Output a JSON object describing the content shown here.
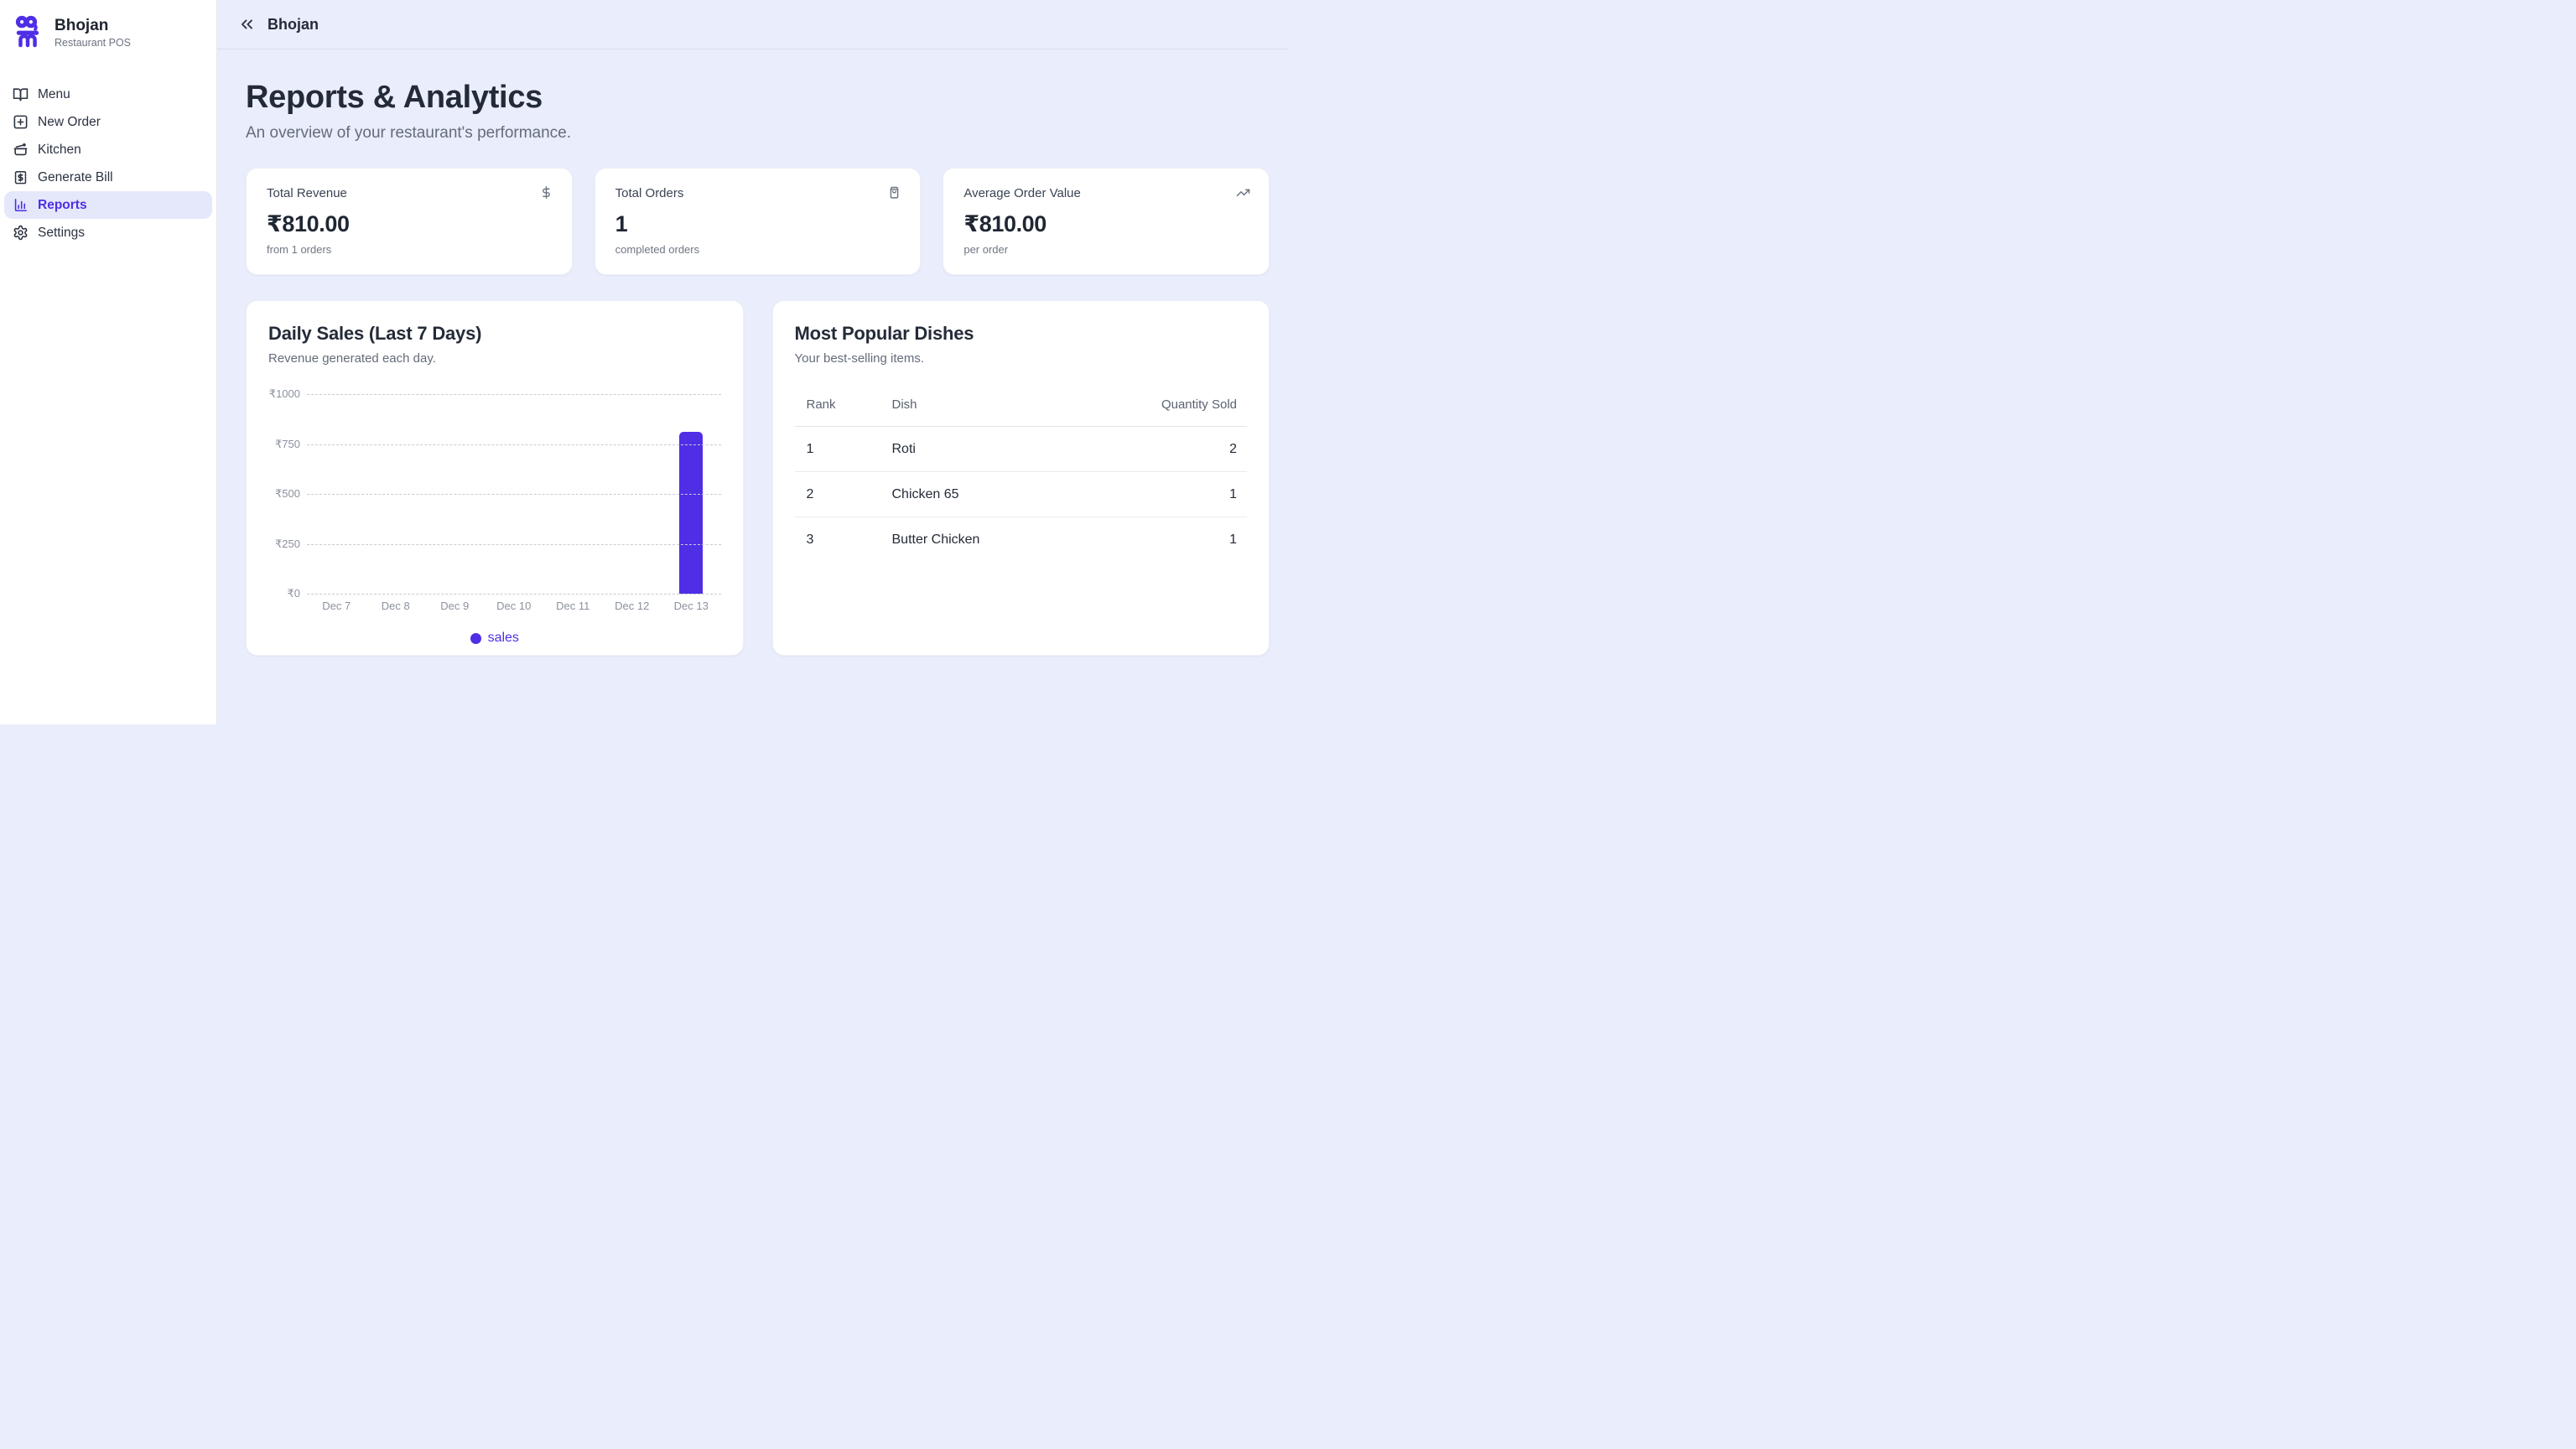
{
  "colors": {
    "accent": "#4f2ee6",
    "main_background": "#e9edfc",
    "sidebar_background": "#ffffff",
    "active_nav_background": "#e4e8fa",
    "muted_text": "#6b7280",
    "heading_text": "#242b38"
  },
  "sidebar": {
    "brand": {
      "name": "Bhojan",
      "tagline": "Restaurant POS",
      "logo_icon": "bhojan-logo-icon"
    },
    "items": [
      {
        "label": "Menu",
        "icon": "book-open-icon",
        "active": false
      },
      {
        "label": "New Order",
        "icon": "square-plus-icon",
        "active": false
      },
      {
        "label": "Kitchen",
        "icon": "cooking-pot-icon",
        "active": false
      },
      {
        "label": "Generate Bill",
        "icon": "receipt-icon",
        "active": false
      },
      {
        "label": "Reports",
        "icon": "bar-chart-icon",
        "active": true
      },
      {
        "label": "Settings",
        "icon": "gear-icon",
        "active": false
      }
    ]
  },
  "topbar": {
    "title": "Bhojan",
    "collapse_icon": "chevrons-left-icon"
  },
  "page": {
    "title": "Reports & Analytics",
    "subtitle": "An overview of your restaurant's performance."
  },
  "stats": [
    {
      "title": "Total Revenue",
      "value": "₹810.00",
      "caption": "from 1 orders",
      "icon": "dollar-icon"
    },
    {
      "title": "Total Orders",
      "value": "1",
      "caption": "completed orders",
      "icon": "shopping-bag-icon"
    },
    {
      "title": "Average Order Value",
      "value": "₹810.00",
      "caption": "per order",
      "icon": "trending-up-icon"
    }
  ],
  "sales_panel": {
    "title": "Daily Sales (Last 7 Days)",
    "subtitle": "Revenue generated each day."
  },
  "chart_data": {
    "type": "bar",
    "title": "Daily Sales (Last 7 Days)",
    "categories": [
      "Dec 7",
      "Dec 8",
      "Dec 9",
      "Dec 10",
      "Dec 11",
      "Dec 12",
      "Dec 13"
    ],
    "series": [
      {
        "name": "sales",
        "values": [
          0,
          0,
          0,
          0,
          0,
          0,
          810
        ]
      }
    ],
    "ylim": [
      0,
      1000
    ],
    "yticks": [
      0,
      250,
      500,
      750,
      1000
    ],
    "ytick_prefix": "₹",
    "bar_color": "#4f2ee6",
    "grid": "horizontal-dashed",
    "legend_position": "bottom",
    "legend_label": "sales"
  },
  "dishes_panel": {
    "title": "Most Popular Dishes",
    "subtitle": "Your best-selling items.",
    "columns": {
      "rank": "Rank",
      "dish": "Dish",
      "qty": "Quantity Sold"
    },
    "rows": [
      {
        "rank": "1",
        "dish": "Roti",
        "qty": "2"
      },
      {
        "rank": "2",
        "dish": "Chicken 65",
        "qty": "1"
      },
      {
        "rank": "3",
        "dish": "Butter Chicken",
        "qty": "1"
      }
    ]
  }
}
